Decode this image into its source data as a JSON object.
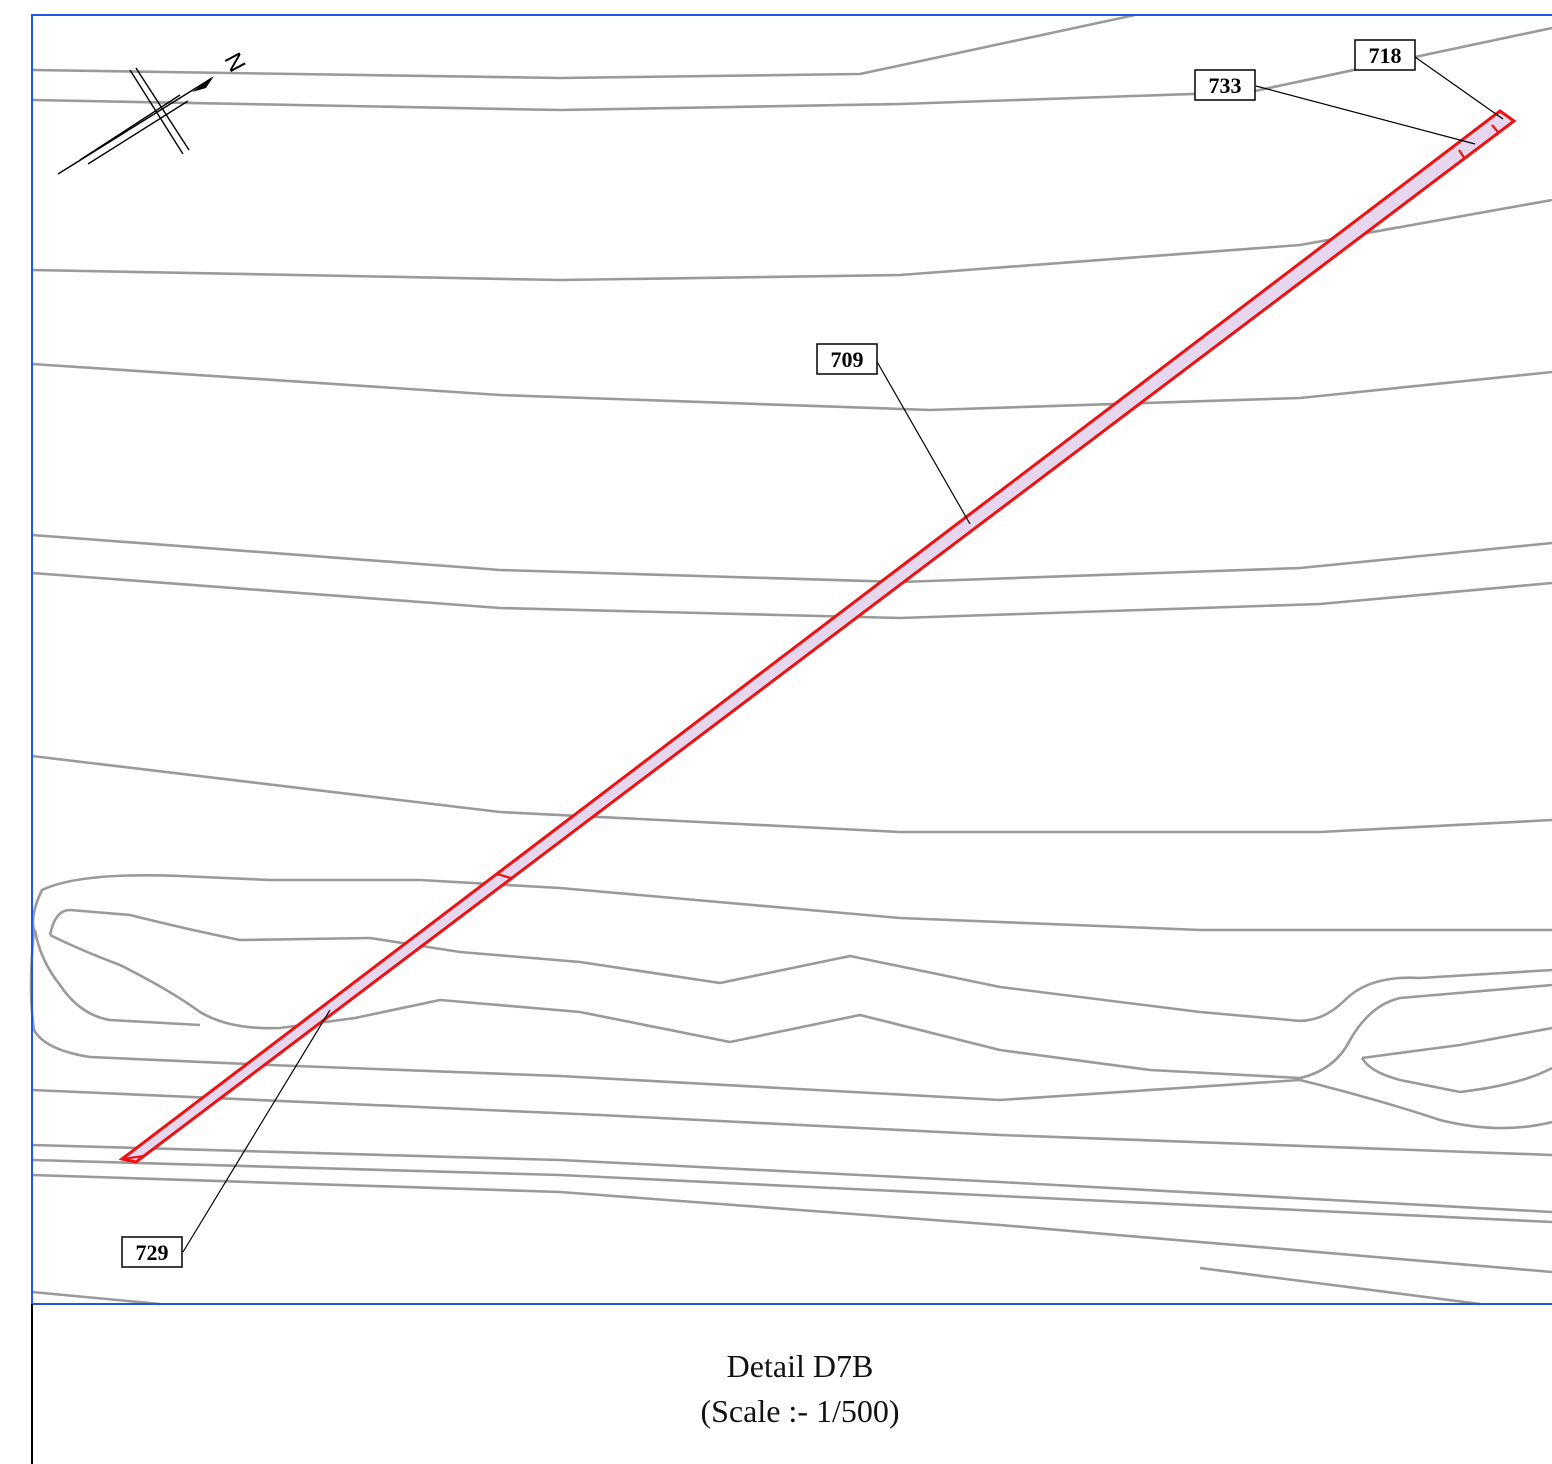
{
  "detail": {
    "title": "Detail D7B",
    "scale": "(Scale :- 1/500)"
  },
  "north_arrow": {
    "label": "N",
    "icon": "north-arrow-icon"
  },
  "parcel_labels": [
    {
      "id": "718",
      "text": "718"
    },
    {
      "id": "733",
      "text": "733"
    },
    {
      "id": "709",
      "text": "709"
    },
    {
      "id": "729",
      "text": "729"
    }
  ],
  "colors": {
    "frame": "#2255ee",
    "parcel_outline": "#ee1111",
    "parcel_fill": "#e6d6ee",
    "contour": "#9a9a9a"
  }
}
